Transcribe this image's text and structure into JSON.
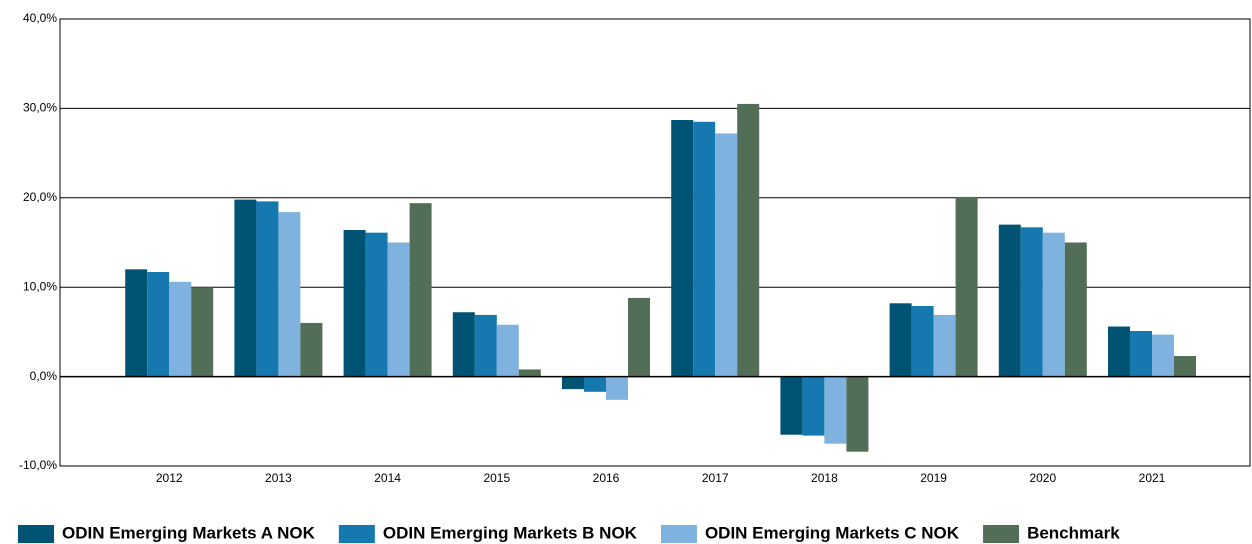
{
  "chart_data": {
    "type": "bar",
    "categories": [
      "2012",
      "2013",
      "2014",
      "2015",
      "2016",
      "2017",
      "2018",
      "2019",
      "2020",
      "2021"
    ],
    "series": [
      {
        "name": "ODIN Emerging Markets A NOK",
        "color": "#005373",
        "values": [
          12.0,
          19.8,
          16.4,
          7.2,
          -1.4,
          28.7,
          -6.5,
          8.2,
          17.0,
          5.6
        ]
      },
      {
        "name": "ODIN Emerging Markets B NOK",
        "color": "#1578ae",
        "values": [
          11.7,
          19.6,
          16.1,
          6.9,
          -1.7,
          28.5,
          -6.6,
          7.9,
          16.7,
          5.1
        ]
      },
      {
        "name": "ODIN Emerging Markets C NOK",
        "color": "#7fb2de",
        "values": [
          10.6,
          18.4,
          15.0,
          5.8,
          -2.6,
          27.2,
          -7.5,
          6.9,
          16.1,
          4.7
        ]
      },
      {
        "name": "Benchmark",
        "color": "#536e57",
        "values": [
          10.0,
          6.0,
          19.4,
          0.8,
          8.8,
          30.5,
          -8.4,
          20.1,
          15.0,
          2.3
        ]
      }
    ],
    "ylim": [
      -10,
      40
    ],
    "yticks": [
      {
        "value": -10,
        "label": "-10,0%"
      },
      {
        "value": 0,
        "label": "0,0%"
      },
      {
        "value": 10,
        "label": "10,0%"
      },
      {
        "value": 20,
        "label": "20,0%"
      },
      {
        "value": 30,
        "label": "30,0%"
      },
      {
        "value": 40,
        "label": "40,0%"
      }
    ],
    "grid": true,
    "legend": "bottom"
  }
}
